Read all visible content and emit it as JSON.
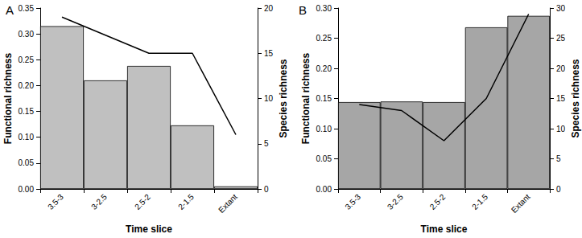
{
  "chart_data": [
    {
      "type": "bar",
      "title": "A",
      "x_label": "Time slice",
      "y_label": "Functional richness",
      "y2_label": "Species richness",
      "categories": [
        "3.5-3",
        "3-2.5",
        "2.5-2",
        "2-1.5",
        "Extant"
      ],
      "series": [
        {
          "type": "bar",
          "color": "#c0c0c0",
          "values": [
            0.315,
            0.21,
            0.238,
            0.123,
            0.005
          ]
        },
        {
          "type": "line",
          "axis": "y2",
          "color": "#000000",
          "line_style": "solid",
          "values": [
            19,
            17,
            15,
            15,
            6
          ]
        }
      ],
      "ylim": [
        0,
        0.35
      ],
      "yticks": [
        {
          "value": 0,
          "label": "0.00"
        },
        {
          "value": 0.05,
          "label": "0.05"
        },
        {
          "value": 0.1,
          "label": "0.10"
        },
        {
          "value": 0.15,
          "label": "0.15"
        },
        {
          "value": 0.2,
          "label": "0.20"
        },
        {
          "value": 0.25,
          "label": "0.25"
        },
        {
          "value": 0.3,
          "label": "0.30"
        },
        {
          "value": 0.35,
          "label": "0.35"
        }
      ],
      "y2lim": [
        0,
        20
      ],
      "y2ticks": [
        0,
        5,
        10,
        15,
        20
      ],
      "grid": false
    },
    {
      "type": "bar",
      "title": "B",
      "x_label": "Time slice",
      "y_label": "Functional richness",
      "y2_label": "Species richness",
      "categories": [
        "3.5-3",
        "3-2.5",
        "2.5-2",
        "2-1.5",
        "Extant"
      ],
      "series": [
        {
          "type": "bar",
          "color": "#a6a6a6",
          "values": [
            0.144,
            0.145,
            0.144,
            0.268,
            0.287
          ]
        },
        {
          "type": "line",
          "axis": "y2",
          "color": "#000000",
          "line_style": "solid",
          "values": [
            14,
            13,
            8,
            15,
            29
          ]
        }
      ],
      "ylim": [
        0,
        0.3
      ],
      "yticks": [
        {
          "value": 0,
          "label": "0.00"
        },
        {
          "value": 0.05,
          "label": "0.05"
        },
        {
          "value": 0.1,
          "label": "0.10"
        },
        {
          "value": 0.15,
          "label": "0.15"
        },
        {
          "value": 0.2,
          "label": "0.20"
        },
        {
          "value": 0.25,
          "label": "0.25"
        },
        {
          "value": 0.3,
          "label": "0.30"
        }
      ],
      "y2lim": [
        0,
        30
      ],
      "y2ticks": [
        0,
        5,
        10,
        15,
        20,
        25,
        30
      ],
      "grid": false
    }
  ]
}
